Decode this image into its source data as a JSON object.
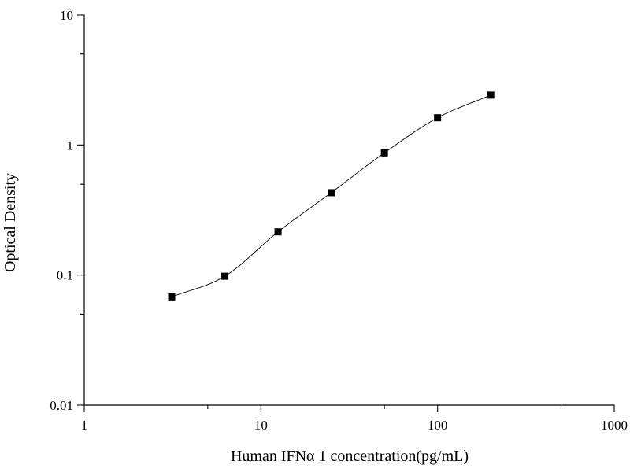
{
  "chart_data": {
    "type": "scatter",
    "title": "",
    "xlabel": "Human IFNα 1 concentration(pg/mL)",
    "ylabel": "Optical Density",
    "xscale": "log",
    "yscale": "log",
    "xlim": [
      1,
      1000
    ],
    "ylim": [
      0.01,
      10
    ],
    "x_ticks": [
      1,
      10,
      100,
      1000
    ],
    "x_tick_labels": [
      "1",
      "10",
      "100",
      "1000"
    ],
    "y_ticks": [
      0.01,
      0.1,
      1,
      10
    ],
    "y_tick_labels": [
      "0.01",
      "0.1",
      "1",
      "10"
    ],
    "grid": false,
    "legend": "none",
    "marker": "square",
    "marker_color": "#000000",
    "curve_color": "#000000",
    "fit_curve": "four-parameter logistic through points",
    "series": [
      {
        "x": [
          3.125,
          6.25,
          12.5,
          25,
          50,
          100,
          200
        ],
        "y": [
          0.068,
          0.098,
          0.215,
          0.43,
          0.87,
          1.62,
          2.42
        ]
      }
    ]
  }
}
